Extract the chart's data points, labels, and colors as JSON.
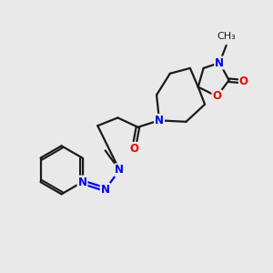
{
  "bg_color": "#e9e9e9",
  "bond_color": "#1a1a1a",
  "N_color": "#0000ee",
  "O_color": "#ee0000",
  "lw": 1.6,
  "fs": 8.5,
  "dbo": 0.12,
  "xlim": [
    0,
    10
  ],
  "ylim": [
    0,
    10
  ]
}
